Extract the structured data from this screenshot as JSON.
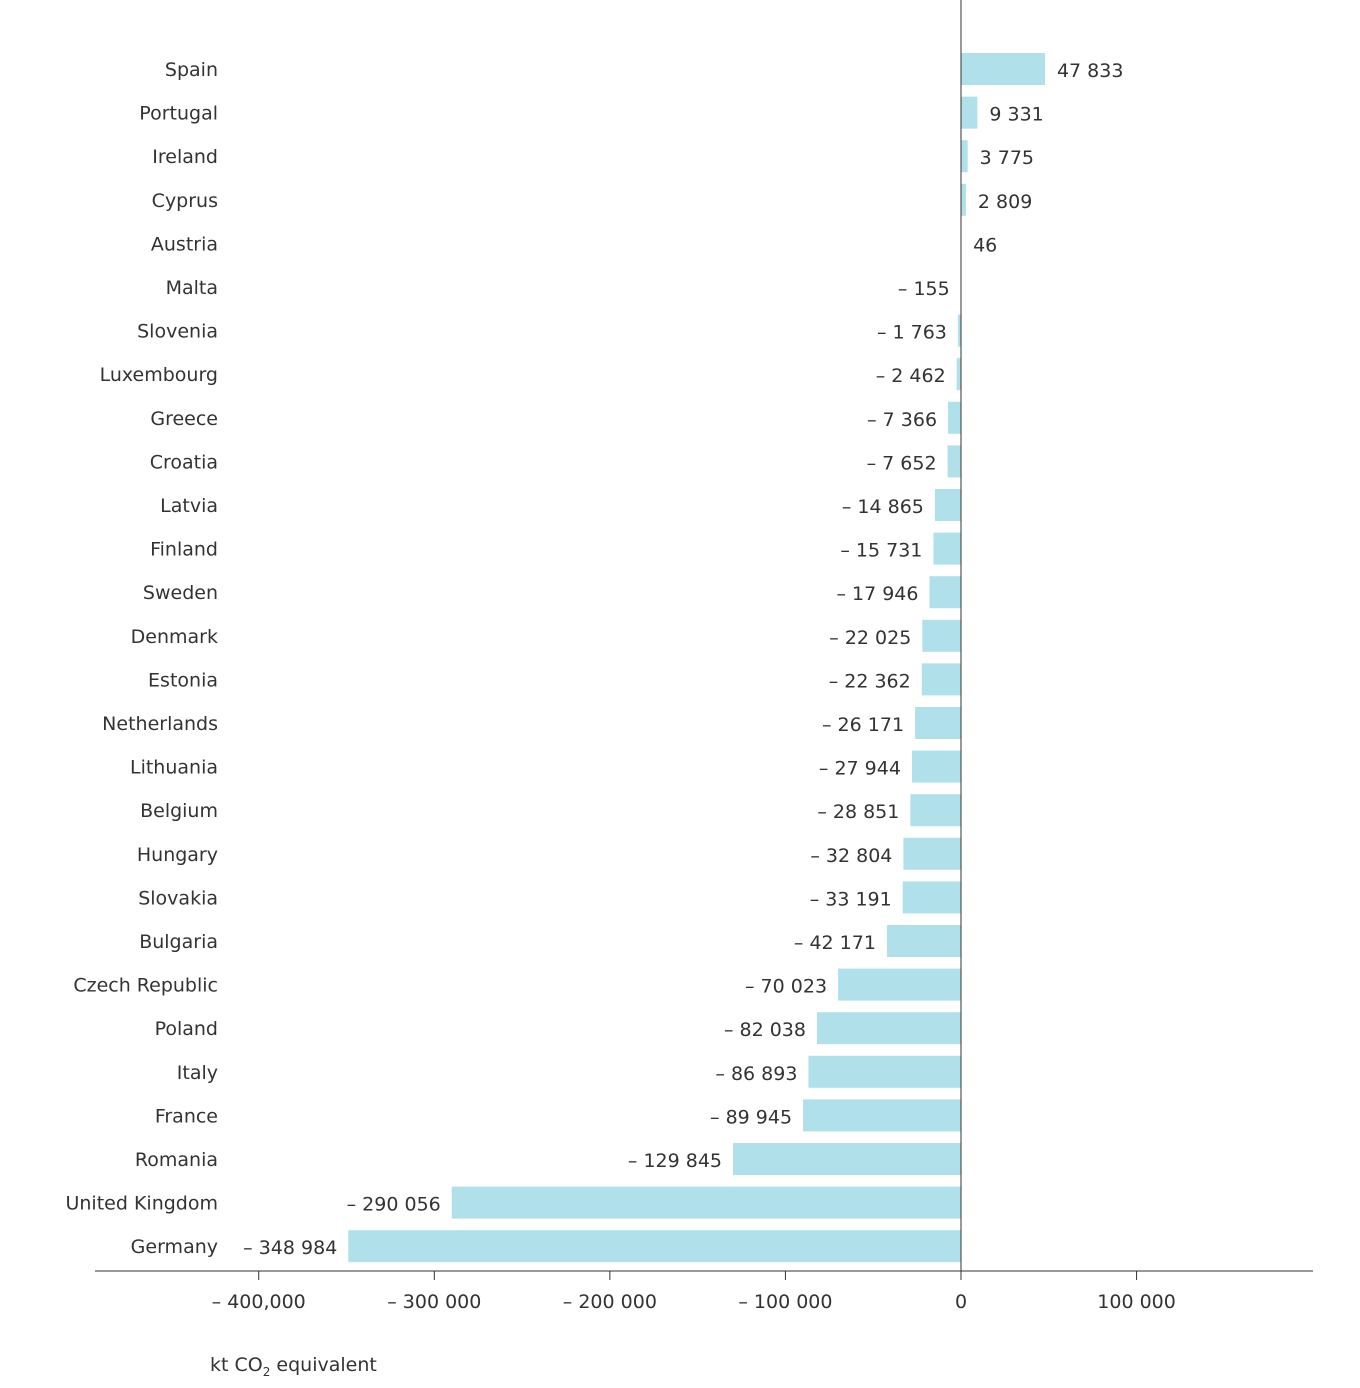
{
  "chart_data": {
    "type": "bar",
    "orientation": "horizontal",
    "categories": [
      "Spain",
      "Portugal",
      "Ireland",
      "Cyprus",
      "Austria",
      "Malta",
      "Slovenia",
      "Luxembourg",
      "Greece",
      "Croatia",
      "Latvia",
      "Finland",
      "Sweden",
      "Denmark",
      "Estonia",
      "Netherlands",
      "Lithuania",
      "Belgium",
      "Hungary",
      "Slovakia",
      "Bulgaria",
      "Czech Republic",
      "Poland",
      "Italy",
      "France",
      "Romania",
      "United Kingdom",
      "Germany"
    ],
    "values": [
      47833,
      9331,
      3775,
      2809,
      46,
      -155,
      -1763,
      -2462,
      -7366,
      -7652,
      -14865,
      -15731,
      -17946,
      -22025,
      -22362,
      -26171,
      -27944,
      -28851,
      -32804,
      -33191,
      -42171,
      -70023,
      -82038,
      -86893,
      -89945,
      -129845,
      -290056,
      -348984
    ],
    "value_labels": [
      "47 833",
      "9 331",
      "3 775",
      "2 809",
      "46",
      "– 155",
      "– 1 763",
      "– 2 462",
      "– 7 366",
      "– 7 652",
      "– 14 865",
      "– 15 731",
      "– 17 946",
      "– 22 025",
      "– 22 362",
      "– 26 171",
      "– 27 944",
      "– 28 851",
      "– 32 804",
      "– 33 191",
      "– 42 171",
      "– 70 023",
      "– 82 038",
      "– 86 893",
      "– 89 945",
      "– 129 845",
      "– 290 056",
      "– 348 984"
    ],
    "xaxis": {
      "ticks": [
        -400000,
        -300000,
        -200000,
        -100000,
        0,
        100000
      ],
      "tick_labels": [
        "– 400,000",
        "– 300 000",
        "– 200 000",
        "– 100 000",
        "0",
        "100 000"
      ],
      "range": [
        -500000,
        200000
      ]
    },
    "unit_label": {
      "prefix": "kt CO",
      "subscript": "2",
      "suffix": " equivalent"
    },
    "bar_color": "#b0e0e9",
    "axis_color": "#333333",
    "grid": false,
    "legend": "none"
  }
}
